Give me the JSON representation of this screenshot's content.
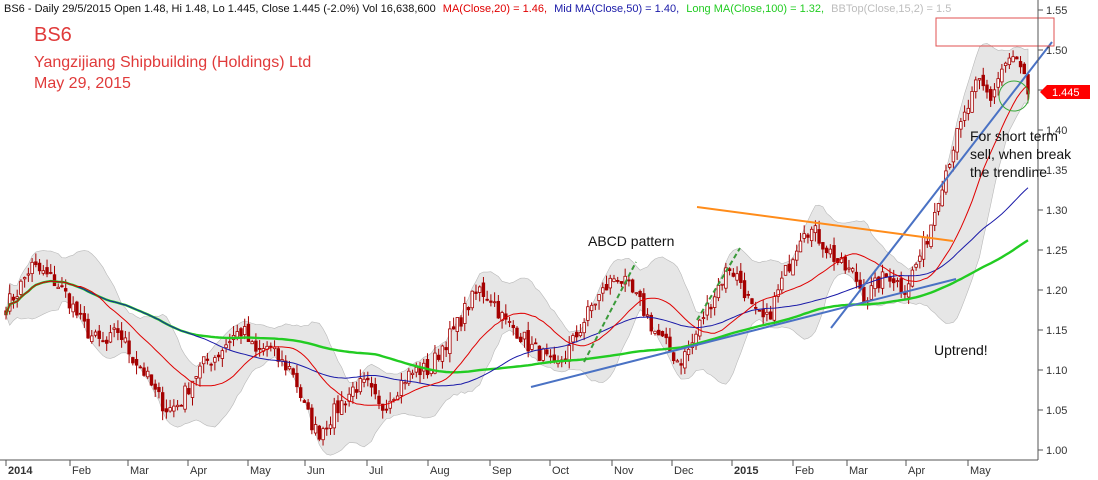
{
  "header": {
    "prefix": "BS6 - Daily 29/5/2015 Open 1.48, Hi 1.48, Lo 1.445, Close 1.445 (-2.0%) Vol 16,638,600",
    "ma20": "MA(Close,20) = 1.46,",
    "ma50": "Mid MA(Close,50) = 1.40,",
    "ma100": "Long MA(Close,100) = 1.32,",
    "bb": "BBTop(Close,15,2) = 1.5"
  },
  "title": {
    "ticker": "BS6",
    "company": "Yangzijiang Shipbuilding (Holdings) Ltd",
    "date": "May 29, 2015"
  },
  "annotations": {
    "abcd": "ABCD pattern",
    "short_term_1": "For short term",
    "short_term_2": "sell, when break",
    "short_term_3": "the trendline",
    "uptrend": "Uptrend!"
  },
  "price_tag": "1.445",
  "colors": {
    "candles": "#a50000",
    "ma20": "#e00000",
    "ma50": "#1a1aa8",
    "ma100": "#22cc22",
    "band_fill": "#e2e2e2",
    "trendline": "#4a72c4",
    "resistance": "#ff8c1a",
    "abcd_leg": "#3a9a3a",
    "highlight_box": "#e05050",
    "circle": "#3aa83a",
    "price_tag_bg": "#ff0000"
  },
  "chart_data": {
    "type": "candlestick",
    "x_axis_labels": [
      "2014",
      "Feb",
      "Mar",
      "Apr",
      "May",
      "Jun",
      "Jul",
      "Aug",
      "Sep",
      "Oct",
      "Nov",
      "Dec",
      "2015",
      "Feb",
      "Mar",
      "Apr",
      "May"
    ],
    "y_ticks": [
      "1.00",
      "1.05",
      "1.10",
      "1.15",
      "1.20",
      "1.25",
      "1.30",
      "1.35",
      "1.40",
      "1.45",
      "1.50",
      "1.55"
    ],
    "ylim": [
      0.98,
      1.56
    ],
    "grid": false,
    "close_series": [
      [
        0,
        1.18
      ],
      [
        1,
        1.2
      ],
      [
        2,
        1.23
      ],
      [
        3,
        1.22
      ],
      [
        4,
        1.21
      ],
      [
        5,
        1.19
      ],
      [
        6,
        1.16
      ],
      [
        7,
        1.14
      ],
      [
        8,
        1.13
      ],
      [
        9,
        1.15
      ],
      [
        10,
        1.12
      ],
      [
        11,
        1.1
      ],
      [
        12,
        1.07
      ],
      [
        13,
        1.05
      ],
      [
        14,
        1.06
      ],
      [
        15,
        1.09
      ],
      [
        16,
        1.11
      ],
      [
        17,
        1.12
      ],
      [
        18,
        1.14
      ],
      [
        19,
        1.15
      ],
      [
        20,
        1.12
      ],
      [
        21,
        1.13
      ],
      [
        22,
        1.11
      ],
      [
        23,
        1.1
      ],
      [
        24,
        1.05
      ],
      [
        25,
        1.02
      ],
      [
        26,
        1.04
      ],
      [
        27,
        1.06
      ],
      [
        28,
        1.08
      ],
      [
        29,
        1.08
      ],
      [
        30,
        1.05
      ],
      [
        31,
        1.07
      ],
      [
        32,
        1.09
      ],
      [
        33,
        1.1
      ],
      [
        34,
        1.1
      ],
      [
        35,
        1.13
      ],
      [
        36,
        1.15
      ],
      [
        37,
        1.18
      ],
      [
        38,
        1.2
      ],
      [
        39,
        1.19
      ],
      [
        40,
        1.16
      ],
      [
        41,
        1.15
      ],
      [
        42,
        1.13
      ],
      [
        43,
        1.12
      ],
      [
        44,
        1.1
      ],
      [
        45,
        1.12
      ],
      [
        46,
        1.15
      ],
      [
        47,
        1.18
      ],
      [
        48,
        1.2
      ],
      [
        49,
        1.22
      ],
      [
        50,
        1.2
      ],
      [
        51,
        1.18
      ],
      [
        52,
        1.15
      ],
      [
        53,
        1.13
      ],
      [
        54,
        1.11
      ],
      [
        55,
        1.13
      ],
      [
        56,
        1.17
      ],
      [
        57,
        1.2
      ],
      [
        58,
        1.23
      ],
      [
        59,
        1.21
      ],
      [
        60,
        1.17
      ],
      [
        61,
        1.16
      ],
      [
        62,
        1.2
      ],
      [
        63,
        1.24
      ],
      [
        64,
        1.28
      ],
      [
        65,
        1.27
      ],
      [
        66,
        1.25
      ],
      [
        67,
        1.23
      ],
      [
        68,
        1.22
      ],
      [
        69,
        1.19
      ],
      [
        70,
        1.21
      ],
      [
        71,
        1.22
      ],
      [
        72,
        1.2
      ],
      [
        73,
        1.23
      ],
      [
        74,
        1.27
      ],
      [
        75,
        1.33
      ],
      [
        76,
        1.38
      ],
      [
        77,
        1.42
      ],
      [
        78,
        1.46
      ],
      [
        79,
        1.44
      ],
      [
        80,
        1.48
      ],
      [
        81,
        1.49
      ],
      [
        82,
        1.45
      ]
    ],
    "ma20_value": 1.46,
    "ma50_value": 1.4,
    "ma100_value": 1.32,
    "bbtop_value": 1.5,
    "last_close": 1.445
  }
}
